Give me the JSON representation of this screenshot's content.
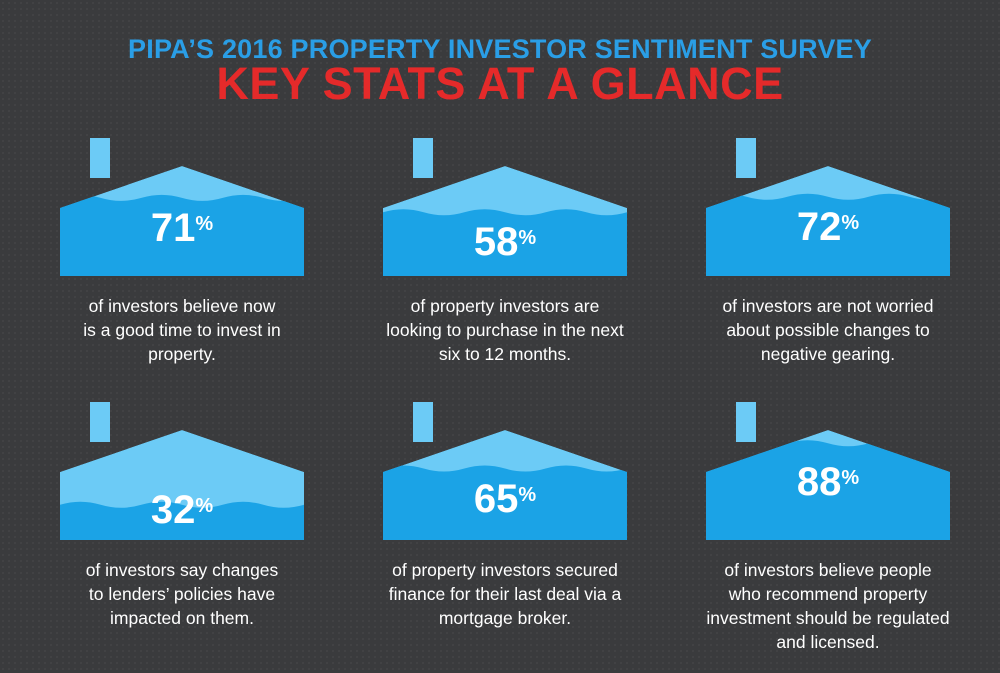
{
  "header": {
    "subtitle": "PIPA’S 2016 PROPERTY INVESTOR SENTIMENT SURVEY",
    "title": "KEY STATS AT A GLANCE"
  },
  "colors": {
    "background": "#3a3b3d",
    "subtitle": "#2a9ee6",
    "title": "#e52a2a",
    "house_light": "#6ccbf6",
    "house_dark": "#1ba3e6",
    "text": "#ffffff"
  },
  "stats": [
    {
      "value": 71,
      "unit": "%",
      "fill": 0.71,
      "caption": [
        "of investors believe now",
        "is a good time to invest in",
        "property."
      ]
    },
    {
      "value": 58,
      "unit": "%",
      "fill": 0.58,
      "caption": [
        "of property investors are",
        "looking to purchase in the next",
        "six to 12 months."
      ]
    },
    {
      "value": 72,
      "unit": "%",
      "fill": 0.72,
      "caption": [
        "of investors are not worried",
        "about possible changes to",
        "negative gearing."
      ]
    },
    {
      "value": 32,
      "unit": "%",
      "fill": 0.32,
      "caption": [
        "of investors say changes",
        "to lenders’ policies have",
        "impacted on them."
      ]
    },
    {
      "value": 65,
      "unit": "%",
      "fill": 0.65,
      "caption": [
        "of property investors secured",
        "finance for their last deal via a",
        "mortgage broker."
      ]
    },
    {
      "value": 88,
      "unit": "%",
      "fill": 0.88,
      "caption": [
        "of investors believe people",
        "who recommend property",
        "investment should be regulated",
        "and licensed."
      ]
    }
  ]
}
